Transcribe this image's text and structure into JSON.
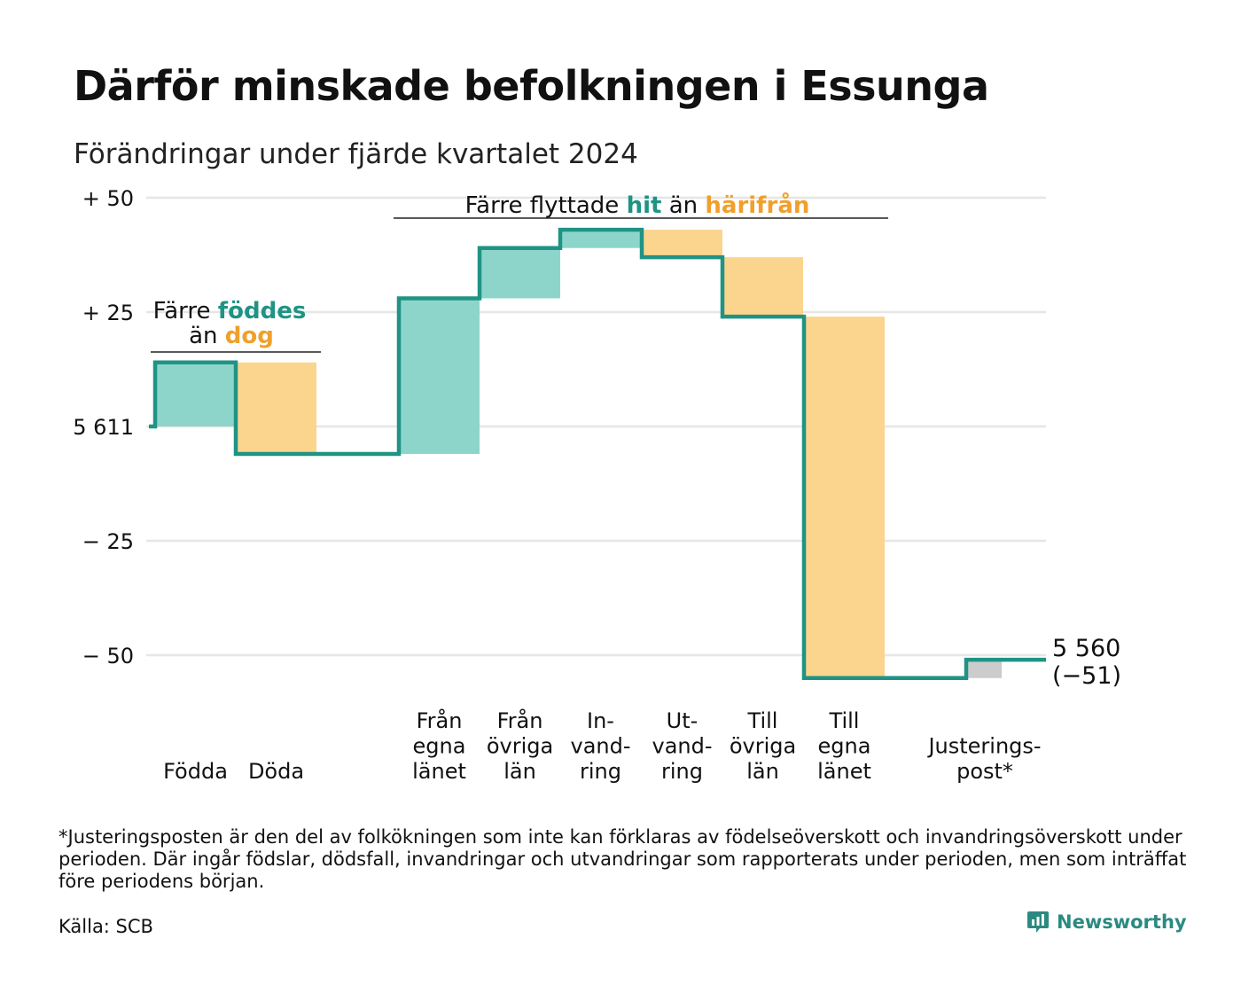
{
  "title": "Därför minskade befolkningen i Essunga",
  "subtitle": "Förändringar under fjärde kvartalet 2024",
  "footnote": "*Justeringsposten är den del av folkökningen som inte kan förklaras av födelseöverskott och invandringsöverskott under perioden. Där ingår födslar, dödsfall, invandringar och utvandringar som rapporterats under perioden, men som inträffat före periodens början.",
  "source": "Källa: SCB",
  "brand": {
    "name": "Newsworthy",
    "icon": "newsworthy-logo-icon"
  },
  "colors": {
    "increase": "#8dd5cb",
    "decrease": "#fbd58e",
    "adjustment": "#cccccc",
    "line": "#1f9384",
    "teal_text": "#1f9384",
    "orange_text": "#f0a02a",
    "grid": "#e6e6e6"
  },
  "chart_data": {
    "type": "waterfall",
    "start_value": 5611,
    "end_value": 5560,
    "end_label": "5 560",
    "end_change_label": "(−51)",
    "y_ticks": [
      {
        "value": 50,
        "label": "+ 50"
      },
      {
        "value": 25,
        "label": "+ 25"
      },
      {
        "value": 0,
        "label": "5 611"
      },
      {
        "value": -25,
        "label": "− 25"
      },
      {
        "value": -50,
        "label": "− 50"
      }
    ],
    "ylim": [
      -50,
      50
    ],
    "grid": true,
    "steps": [
      {
        "label": [
          "Födda"
        ],
        "value": 14,
        "kind": "increase"
      },
      {
        "label": [
          "Döda"
        ],
        "value": -20,
        "kind": "decrease"
      },
      {
        "label": [
          "Från",
          "egna",
          "länet"
        ],
        "value": 34,
        "kind": "increase"
      },
      {
        "label": [
          "Från",
          "övriga",
          "län"
        ],
        "value": 11,
        "kind": "increase"
      },
      {
        "label": [
          "In-",
          "vand-",
          "ring"
        ],
        "value": 4,
        "kind": "increase"
      },
      {
        "label": [
          "Ut-",
          "vand-",
          "ring"
        ],
        "value": -6,
        "kind": "decrease"
      },
      {
        "label": [
          "Till",
          "övriga",
          "län"
        ],
        "value": -13,
        "kind": "decrease"
      },
      {
        "label": [
          "Till",
          "egna",
          "länet"
        ],
        "value": -79,
        "kind": "decrease"
      },
      {
        "label": [
          "Justerings-",
          "post*"
        ],
        "value": 4,
        "kind": "adjustment"
      }
    ],
    "annotations": [
      {
        "lines": [
          [
            {
              "text": "Färre ",
              "style": "plain"
            },
            {
              "text": "föddes",
              "style": "teal"
            }
          ],
          [
            {
              "text": "än ",
              "style": "plain"
            },
            {
              "text": "dog",
              "style": "orange"
            }
          ]
        ]
      },
      {
        "lines": [
          [
            {
              "text": "Färre flyttade ",
              "style": "plain"
            },
            {
              "text": "hit",
              "style": "teal"
            },
            {
              "text": " än ",
              "style": "plain"
            },
            {
              "text": "härifrån",
              "style": "orange"
            }
          ]
        ]
      }
    ]
  }
}
